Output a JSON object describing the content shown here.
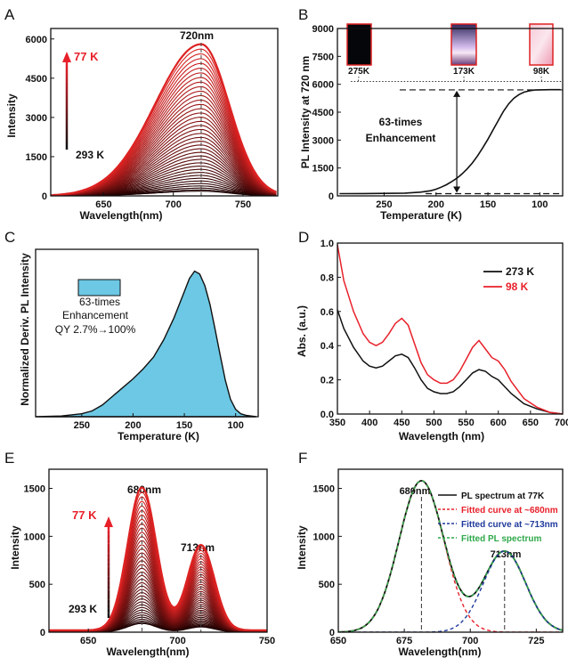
{
  "chart_data": [
    {
      "panel": "A",
      "type": "line",
      "xlabel": "Wavelength(nm)",
      "ylabel": "Intensity",
      "xlim": [
        612,
        775
      ],
      "ylim": [
        0,
        6400
      ],
      "xticks": [
        "650",
        "700",
        "750"
      ],
      "yticks": [
        "0",
        "1500",
        "3000",
        "4500",
        "6000"
      ],
      "annotations": {
        "peak": "720nm",
        "top_temp": "77 K",
        "bottom_temp": "293 K"
      },
      "peak_x": 720,
      "peak_max": 5800,
      "peak_min": 180,
      "curve_count": 40,
      "colors": {
        "top": "#dd2222",
        "bottom": "#1a0000"
      }
    },
    {
      "panel": "B",
      "type": "line",
      "xlabel": "Temperature (K)",
      "ylabel": "PL Intensity at 720 nm",
      "xlim": [
        295,
        78
      ],
      "ylim": [
        0,
        9000
      ],
      "xticks": [
        "250",
        "200",
        "150",
        "100"
      ],
      "yticks": [
        "0",
        "1500",
        "3000",
        "4500",
        "6000",
        "7500",
        "9000"
      ],
      "inset_labels": [
        "275K",
        "173K",
        "98K"
      ],
      "enhancement_text": [
        "63-times",
        "Enhancement"
      ],
      "series": [
        {
          "x": [
            293,
            270,
            250,
            230,
            215,
            205,
            200,
            195,
            190,
            185,
            180,
            175,
            170,
            165,
            160,
            155,
            150,
            145,
            140,
            135,
            130,
            125,
            120,
            115,
            110,
            105,
            100,
            90,
            80
          ],
          "y": [
            120,
            125,
            135,
            150,
            200,
            280,
            360,
            470,
            600,
            760,
            950,
            1180,
            1450,
            1770,
            2150,
            2580,
            3050,
            3550,
            4050,
            4550,
            4950,
            5250,
            5450,
            5580,
            5650,
            5690,
            5700,
            5710,
            5710
          ]
        }
      ],
      "ref_high": 5700,
      "ref_low": 120,
      "ref_top": 6150
    },
    {
      "panel": "C",
      "type": "area",
      "xlabel": "Temperature (K)",
      "ylabel": "Normalized Deriv. PL Intensity",
      "xlim": [
        295,
        78
      ],
      "ylim": [
        0,
        1.15
      ],
      "xticks": [
        "250",
        "200",
        "150",
        "100"
      ],
      "legend": [
        "63-times",
        "Enhancement",
        "QY 2.7%→100%"
      ],
      "fill": "#6cc8e4",
      "series": [
        {
          "x": [
            295,
            270,
            250,
            240,
            230,
            220,
            210,
            200,
            190,
            180,
            170,
            160,
            150,
            145,
            140,
            135,
            130,
            125,
            120,
            115,
            110,
            105,
            100,
            95,
            90,
            80
          ],
          "y": [
            0.0,
            0.005,
            0.02,
            0.04,
            0.08,
            0.14,
            0.2,
            0.26,
            0.33,
            0.41,
            0.53,
            0.68,
            0.86,
            0.95,
            1.0,
            0.98,
            0.9,
            0.77,
            0.6,
            0.42,
            0.25,
            0.12,
            0.05,
            0.02,
            0.01,
            0.0
          ]
        }
      ]
    },
    {
      "panel": "D",
      "type": "line",
      "xlabel": "Wavelength (nm)",
      "ylabel": "Abs. (a.u.)",
      "xlim": [
        350,
        700
      ],
      "ylim": [
        0,
        1.0
      ],
      "xticks": [
        "350",
        "400",
        "450",
        "500",
        "550",
        "600",
        "650",
        "700"
      ],
      "yticks": [
        "0.0",
        "0.2",
        "0.4",
        "0.6",
        "0.8",
        "1.0"
      ],
      "series": [
        {
          "name": "273 K",
          "color": "#111111",
          "x": [
            350,
            360,
            375,
            390,
            400,
            410,
            420,
            430,
            440,
            450,
            460,
            470,
            480,
            490,
            500,
            510,
            520,
            530,
            540,
            550,
            560,
            570,
            580,
            590,
            600,
            610,
            620,
            640,
            660,
            680,
            700
          ],
          "y": [
            0.61,
            0.5,
            0.39,
            0.31,
            0.28,
            0.27,
            0.28,
            0.31,
            0.34,
            0.35,
            0.33,
            0.27,
            0.2,
            0.15,
            0.13,
            0.12,
            0.12,
            0.13,
            0.16,
            0.2,
            0.24,
            0.26,
            0.25,
            0.22,
            0.2,
            0.16,
            0.12,
            0.06,
            0.03,
            0.01,
            0.0
          ]
        },
        {
          "name": "98 K",
          "color": "#e8202a",
          "x": [
            350,
            360,
            375,
            390,
            400,
            410,
            420,
            430,
            440,
            450,
            460,
            470,
            480,
            490,
            500,
            510,
            520,
            530,
            540,
            550,
            560,
            570,
            580,
            590,
            600,
            610,
            620,
            640,
            660,
            680,
            700
          ],
          "y": [
            0.99,
            0.78,
            0.6,
            0.47,
            0.42,
            0.4,
            0.42,
            0.47,
            0.53,
            0.56,
            0.52,
            0.41,
            0.3,
            0.23,
            0.2,
            0.18,
            0.18,
            0.2,
            0.25,
            0.32,
            0.39,
            0.43,
            0.38,
            0.33,
            0.31,
            0.26,
            0.19,
            0.09,
            0.04,
            0.01,
            0.0
          ]
        }
      ]
    },
    {
      "panel": "E",
      "type": "line",
      "xlabel": "Wavelength(nm)",
      "ylabel": "Intensity",
      "xlim": [
        628,
        750
      ],
      "ylim": [
        0,
        1700
      ],
      "xticks": [
        "650",
        "700",
        "750"
      ],
      "yticks": [
        "0",
        "500",
        "1000",
        "1500"
      ],
      "annotations": {
        "peak1": "680nm",
        "peak2": "713nm",
        "top_temp": "77 K",
        "bottom_temp": "293 K"
      },
      "peak1_x": 680,
      "peak2_x": 713,
      "peak1_max": 1490,
      "peak2_max": 890,
      "curve_count": 40,
      "colors": {
        "top": "#dd2222",
        "bottom": "#1a0000"
      }
    },
    {
      "panel": "F",
      "type": "line",
      "xlabel": "Wavelength(nm)",
      "ylabel": "Intensity",
      "xlim": [
        650,
        735
      ],
      "ylim": [
        0,
        1700
      ],
      "xticks": [
        "650",
        "675",
        "700",
        "725"
      ],
      "yticks": [
        "0",
        "500",
        "1000",
        "1500"
      ],
      "annotations": {
        "peak1": "680nm",
        "peak2": "713nm"
      },
      "legend": [
        {
          "label": "PL spectrum at 77K",
          "color": "#111111",
          "dash": false
        },
        {
          "label": "Fitted curve at ~680nm",
          "color": "#e8202a",
          "dash": true
        },
        {
          "label": "Fitted curve at ~713nm",
          "color": "#1f3a9c",
          "dash": true
        },
        {
          "label": "Fitted PL spectrum",
          "color": "#2ea84a",
          "dash": true
        }
      ],
      "gaussians": [
        {
          "center": 681.5,
          "amplitude": 1580,
          "sigma": 8.5
        },
        {
          "center": 713,
          "amplitude": 845,
          "sigma": 8.0
        }
      ]
    }
  ]
}
